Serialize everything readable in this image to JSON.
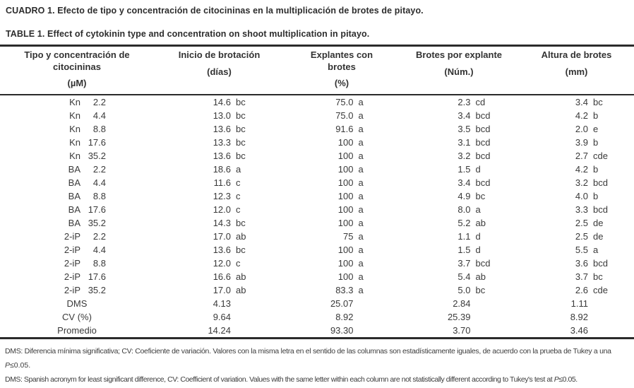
{
  "titles": {
    "es": "CUADRO 1. Efecto de tipo y concentración de citocininas en la multiplicación de brotes de pitayo.",
    "en": "TABLE 1. Effect of cytokinin type and concentration on shoot multiplication in pitayo."
  },
  "table": {
    "columns": [
      {
        "name": "Tipo y concentración de citocininas",
        "unit": "(µM)"
      },
      {
        "name": "Inicio de brotación",
        "unit": "(días)"
      },
      {
        "name": "Explantes con brotes",
        "unit": "(%)"
      },
      {
        "name": "Brotes por explante",
        "unit": "(Núm.)"
      },
      {
        "name": "Altura de brotes",
        "unit": "(mm)"
      }
    ],
    "rows": [
      {
        "tipo": "Kn",
        "conc": "2.2",
        "cells": [
          [
            "14.6",
            "bc"
          ],
          [
            "75.0",
            "a"
          ],
          [
            "2.3",
            "cd"
          ],
          [
            "3.4",
            "bc"
          ]
        ]
      },
      {
        "tipo": "Kn",
        "conc": "4.4",
        "cells": [
          [
            "13.0",
            "bc"
          ],
          [
            "75.0",
            "a"
          ],
          [
            "3.4",
            "bcd"
          ],
          [
            "4.2",
            "b"
          ]
        ]
      },
      {
        "tipo": "Kn",
        "conc": "8.8",
        "cells": [
          [
            "13.6",
            "bc"
          ],
          [
            "91.6",
            "a"
          ],
          [
            "3.5",
            "bcd"
          ],
          [
            "2.0",
            "e"
          ]
        ]
      },
      {
        "tipo": "Kn",
        "conc": "17.6",
        "cells": [
          [
            "13.3",
            "bc"
          ],
          [
            "100",
            "a"
          ],
          [
            "3.1",
            "bcd"
          ],
          [
            "3.9",
            "b"
          ]
        ]
      },
      {
        "tipo": "Kn",
        "conc": "35.2",
        "cells": [
          [
            "13.6",
            "bc"
          ],
          [
            "100",
            "a"
          ],
          [
            "3.2",
            "bcd"
          ],
          [
            "2.7",
            "cde"
          ]
        ]
      },
      {
        "tipo": "BA",
        "conc": "2.2",
        "cells": [
          [
            "18.6",
            "a"
          ],
          [
            "100",
            "a"
          ],
          [
            "1.5",
            "d"
          ],
          [
            "4.2",
            "b"
          ]
        ]
      },
      {
        "tipo": "BA",
        "conc": "4.4",
        "cells": [
          [
            "11.6",
            "c"
          ],
          [
            "100",
            "a"
          ],
          [
            "3.4",
            "bcd"
          ],
          [
            "3.2",
            "bcd"
          ]
        ]
      },
      {
        "tipo": "BA",
        "conc": "8.8",
        "cells": [
          [
            "12.3",
            "c"
          ],
          [
            "100",
            "a"
          ],
          [
            "4.9",
            "bc"
          ],
          [
            "4.0",
            "b"
          ]
        ]
      },
      {
        "tipo": "BA",
        "conc": "17.6",
        "cells": [
          [
            "12.0",
            "c"
          ],
          [
            "100",
            "a"
          ],
          [
            "8.0",
            "a"
          ],
          [
            "3.3",
            "bcd"
          ]
        ]
      },
      {
        "tipo": "BA",
        "conc": "35.2",
        "cells": [
          [
            "14.3",
            "bc"
          ],
          [
            "100",
            "a"
          ],
          [
            "5.2",
            "ab"
          ],
          [
            "2.5",
            "de"
          ]
        ]
      },
      {
        "tipo": "2-iP",
        "conc": "2.2",
        "cells": [
          [
            "17.0",
            "ab"
          ],
          [
            "75",
            "a"
          ],
          [
            "1.1",
            "d"
          ],
          [
            "2.5",
            "de"
          ]
        ]
      },
      {
        "tipo": "2-iP",
        "conc": "4.4",
        "cells": [
          [
            "13.6",
            "bc"
          ],
          [
            "100",
            "a"
          ],
          [
            "1.5",
            "d"
          ],
          [
            "5.5",
            "a"
          ]
        ]
      },
      {
        "tipo": "2-iP",
        "conc": "8.8",
        "cells": [
          [
            "12.0",
            "c"
          ],
          [
            "100",
            "a"
          ],
          [
            "3.7",
            "bcd"
          ],
          [
            "3.6",
            "bcd"
          ]
        ]
      },
      {
        "tipo": "2-iP",
        "conc": "17.6",
        "cells": [
          [
            "16.6",
            "ab"
          ],
          [
            "100",
            "a"
          ],
          [
            "5.4",
            "ab"
          ],
          [
            "3.7",
            "bc"
          ]
        ]
      },
      {
        "tipo": "2-iP",
        "conc": "35.2",
        "cells": [
          [
            "17.0",
            "ab"
          ],
          [
            "83.3",
            "a"
          ],
          [
            "5.0",
            "bc"
          ],
          [
            "2.6",
            "cde"
          ]
        ]
      },
      {
        "label": "DMS",
        "cells": [
          [
            "4.13",
            ""
          ],
          [
            "25.07",
            ""
          ],
          [
            "2.84",
            ""
          ],
          [
            "1.11",
            ""
          ]
        ]
      },
      {
        "label": "CV (%)",
        "cells": [
          [
            "9.64",
            ""
          ],
          [
            "8.92",
            ""
          ],
          [
            "25.39",
            ""
          ],
          [
            "8.92",
            ""
          ]
        ]
      },
      {
        "label": "Promedio",
        "cells": [
          [
            "14.24",
            ""
          ],
          [
            "93.30",
            ""
          ],
          [
            "3.70",
            ""
          ],
          [
            "3.46",
            ""
          ]
        ]
      }
    ]
  },
  "footnotes": {
    "es_main": "DMS: Diferencia mínima significativa; CV: Coeficiente de variación. Valores con la misma letra en el sentido de las columnas son estadísticamente iguales, de acuerdo con la prueba de Tukey a una",
    "en_main": "DMS: Spanish acronym for least significant difference, CV: Coefficient of variation. Values with the same letter within each column are not statistically different according to Tukey's test at ",
    "p": "P",
    "threshold": "≤0.05."
  }
}
